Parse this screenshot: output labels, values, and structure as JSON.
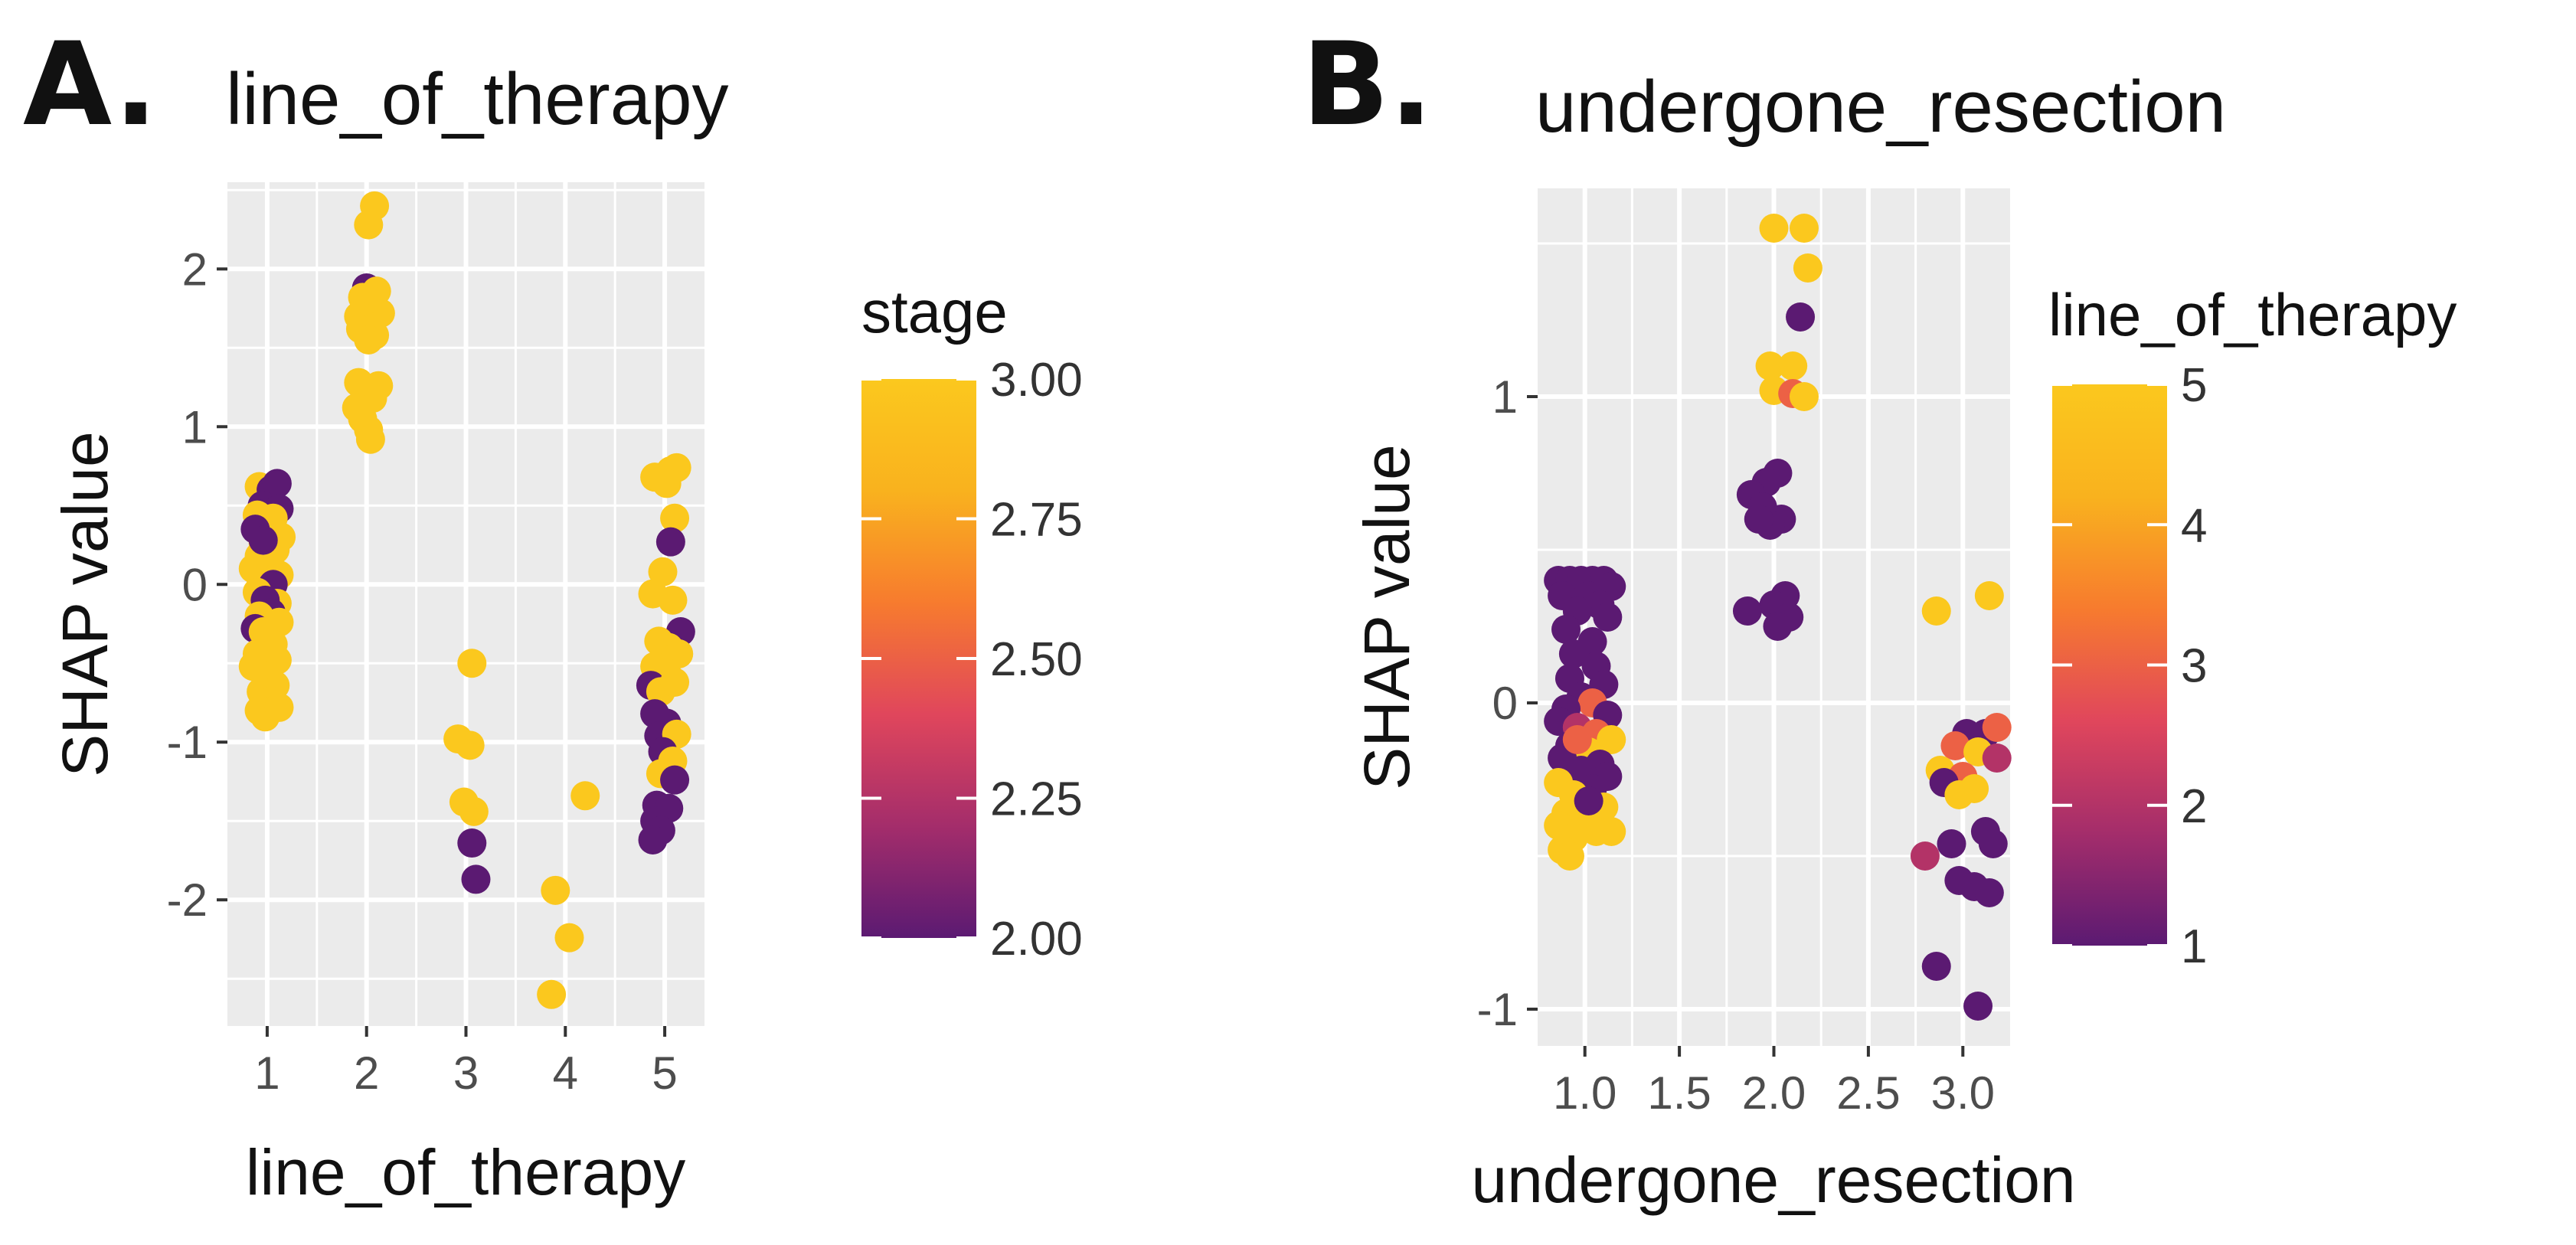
{
  "chart_data": [
    {
      "panel_label": "A.",
      "type": "scatter",
      "title": "line_of_therapy",
      "xlabel": "line_of_therapy",
      "ylabel": "SHAP value",
      "xlim": [
        0.6,
        5.4
      ],
      "ylim": [
        -2.8,
        2.55
      ],
      "x_ticks": [
        1,
        2,
        3,
        4,
        5
      ],
      "x_tick_labels": [
        "1",
        "2",
        "3",
        "4",
        "5"
      ],
      "x_minor": [],
      "y_ticks": [
        -2,
        -1,
        0,
        1,
        2
      ],
      "y_tick_labels": [
        "-2",
        "-1",
        "0",
        "1",
        "2"
      ],
      "grid": true,
      "color_var": "stage",
      "color_range": [
        2.0,
        3.0
      ],
      "legend_ticks": [
        2.0,
        2.25,
        2.5,
        2.75,
        3.0
      ],
      "legend_tick_labels": [
        "2.00",
        "2.25",
        "2.50",
        "2.75",
        "3.00"
      ],
      "palette": [
        "#5b1a72",
        "#a42d6b",
        "#e0465c",
        "#f77b2e",
        "#f9b21e",
        "#fbc81e"
      ],
      "points": [
        [
          0.92,
          0.62,
          3
        ],
        [
          0.98,
          0.55,
          3
        ],
        [
          1.04,
          0.6,
          2
        ],
        [
          1.1,
          0.64,
          2
        ],
        [
          0.95,
          0.5,
          2
        ],
        [
          1.12,
          0.48,
          2
        ],
        [
          0.9,
          0.44,
          3
        ],
        [
          1.06,
          0.42,
          3
        ],
        [
          0.94,
          0.35,
          3
        ],
        [
          1.0,
          0.38,
          3
        ],
        [
          1.14,
          0.3,
          3
        ],
        [
          0.88,
          0.35,
          2
        ],
        [
          0.96,
          0.26,
          3
        ],
        [
          1.08,
          0.22,
          3
        ],
        [
          0.92,
          0.18,
          3
        ],
        [
          1.02,
          0.12,
          3
        ],
        [
          0.86,
          0.1,
          3
        ],
        [
          1.12,
          0.06,
          3
        ],
        [
          0.94,
          0.02,
          3
        ],
        [
          1.06,
          0.0,
          2
        ],
        [
          0.9,
          -0.05,
          3
        ],
        [
          1.1,
          -0.12,
          3
        ],
        [
          0.98,
          -0.1,
          2
        ],
        [
          1.04,
          -0.18,
          2
        ],
        [
          0.92,
          -0.2,
          3
        ],
        [
          0.88,
          -0.28,
          2
        ],
        [
          1.12,
          -0.24,
          3
        ],
        [
          0.96,
          -0.3,
          3
        ],
        [
          1.06,
          -0.38,
          3
        ],
        [
          0.9,
          -0.44,
          3
        ],
        [
          1.1,
          -0.48,
          3
        ],
        [
          0.86,
          -0.52,
          3
        ],
        [
          1.0,
          -0.58,
          3
        ],
        [
          1.08,
          -0.64,
          3
        ],
        [
          0.94,
          -0.68,
          3
        ],
        [
          1.04,
          -0.74,
          3
        ],
        [
          0.92,
          -0.8,
          3
        ],
        [
          0.98,
          -0.84,
          3
        ],
        [
          1.12,
          -0.78,
          3
        ],
        [
          0.96,
          0.28,
          2
        ],
        [
          2.0,
          1.88,
          2
        ],
        [
          2.08,
          2.4,
          3
        ],
        [
          2.02,
          2.28,
          3
        ],
        [
          1.96,
          1.82,
          3
        ],
        [
          2.1,
          1.86,
          3
        ],
        [
          2.04,
          1.8,
          3
        ],
        [
          2.14,
          1.72,
          3
        ],
        [
          1.92,
          1.7,
          3
        ],
        [
          2.0,
          1.64,
          3
        ],
        [
          2.08,
          1.58,
          3
        ],
        [
          1.94,
          1.62,
          3
        ],
        [
          2.02,
          1.55,
          3
        ],
        [
          2.12,
          1.26,
          3
        ],
        [
          1.92,
          1.28,
          3
        ],
        [
          1.98,
          1.22,
          3
        ],
        [
          2.06,
          1.18,
          3
        ],
        [
          1.96,
          1.05,
          3
        ],
        [
          2.02,
          0.98,
          3
        ],
        [
          2.04,
          0.92,
          3
        ],
        [
          1.9,
          1.12,
          3
        ],
        [
          3.06,
          -0.5,
          3
        ],
        [
          2.92,
          -0.98,
          3
        ],
        [
          3.04,
          -1.02,
          3
        ],
        [
          2.98,
          -1.38,
          3
        ],
        [
          3.08,
          -1.44,
          3
        ],
        [
          3.06,
          -1.64,
          2
        ],
        [
          3.1,
          -1.87,
          2
        ],
        [
          4.2,
          -1.34,
          3
        ],
        [
          3.9,
          -1.94,
          3
        ],
        [
          4.04,
          -2.24,
          3
        ],
        [
          3.86,
          -2.6,
          3
        ],
        [
          4.9,
          0.68,
          3
        ],
        [
          5.06,
          0.72,
          3
        ],
        [
          5.12,
          0.74,
          3
        ],
        [
          5.02,
          0.64,
          3
        ],
        [
          5.1,
          0.42,
          3
        ],
        [
          5.06,
          0.27,
          2
        ],
        [
          4.98,
          0.08,
          3
        ],
        [
          5.08,
          -0.1,
          3
        ],
        [
          4.88,
          -0.06,
          3
        ],
        [
          5.16,
          -0.3,
          2
        ],
        [
          4.94,
          -0.36,
          3
        ],
        [
          5.04,
          -0.4,
          3
        ],
        [
          5.14,
          -0.44,
          3
        ],
        [
          4.9,
          -0.52,
          3
        ],
        [
          5.02,
          -0.56,
          3
        ],
        [
          4.86,
          -0.64,
          2
        ],
        [
          4.96,
          -0.68,
          3
        ],
        [
          5.1,
          -0.62,
          3
        ],
        [
          4.9,
          -0.82,
          2
        ],
        [
          5.02,
          -0.88,
          2
        ],
        [
          4.94,
          -0.96,
          2
        ],
        [
          5.12,
          -0.95,
          3
        ],
        [
          4.98,
          -1.06,
          2
        ],
        [
          5.08,
          -1.12,
          3
        ],
        [
          4.96,
          -1.2,
          3
        ],
        [
          5.1,
          -1.24,
          2
        ],
        [
          4.92,
          -1.4,
          2
        ],
        [
          5.04,
          -1.42,
          2
        ],
        [
          4.9,
          -1.5,
          2
        ],
        [
          4.96,
          -1.56,
          2
        ],
        [
          4.88,
          -1.62,
          2
        ]
      ]
    },
    {
      "panel_label": "B.",
      "type": "scatter",
      "title": "undergone_resection",
      "xlabel": "undergone_resection",
      "ylabel": "SHAP value",
      "xlim": [
        0.75,
        3.25
      ],
      "ylim": [
        -1.12,
        1.68
      ],
      "x_ticks": [
        1.0,
        1.5,
        2.0,
        2.5,
        3.0
      ],
      "x_tick_labels": [
        "1.0",
        "1.5",
        "2.0",
        "2.5",
        "3.0"
      ],
      "x_minor": [
        1.25,
        1.75,
        2.25,
        2.75
      ],
      "y_ticks": [
        -1,
        0,
        1
      ],
      "y_tick_labels": [
        "-1",
        "0",
        "1"
      ],
      "grid": true,
      "color_var": "line_of_therapy",
      "color_range": [
        1,
        5
      ],
      "legend_ticks": [
        1,
        2,
        3,
        4,
        5
      ],
      "legend_tick_labels": [
        "1",
        "2",
        "3",
        "4",
        "5"
      ],
      "palette": [
        "#5b1a72",
        "#a42d6b",
        "#e0465c",
        "#f77b2e",
        "#f9b21e",
        "#fbc81e"
      ],
      "points": [
        [
          0.86,
          0.4,
          1
        ],
        [
          0.92,
          0.4,
          1
        ],
        [
          0.98,
          0.4,
          1
        ],
        [
          1.04,
          0.4,
          1
        ],
        [
          1.1,
          0.4,
          1
        ],
        [
          1.14,
          0.38,
          1
        ],
        [
          0.88,
          0.35,
          1
        ],
        [
          1.02,
          0.35,
          1
        ],
        [
          1.08,
          0.32,
          1
        ],
        [
          0.96,
          0.3,
          1
        ],
        [
          1.12,
          0.28,
          1
        ],
        [
          0.9,
          0.24,
          1
        ],
        [
          1.04,
          0.2,
          1
        ],
        [
          0.94,
          0.16,
          1
        ],
        [
          1.06,
          0.12,
          1
        ],
        [
          0.92,
          0.08,
          1
        ],
        [
          1.1,
          0.06,
          1
        ],
        [
          0.98,
          0.02,
          1
        ],
        [
          1.04,
          0.0,
          3
        ],
        [
          0.9,
          -0.02,
          1
        ],
        [
          1.12,
          -0.04,
          1
        ],
        [
          0.86,
          -0.06,
          1
        ],
        [
          0.96,
          -0.08,
          2
        ],
        [
          1.06,
          -0.1,
          3
        ],
        [
          1.14,
          -0.12,
          5
        ],
        [
          0.92,
          -0.14,
          1
        ],
        [
          1.02,
          -0.16,
          5
        ],
        [
          0.88,
          -0.18,
          1
        ],
        [
          1.08,
          -0.2,
          1
        ],
        [
          0.98,
          -0.22,
          1
        ],
        [
          1.12,
          -0.24,
          1
        ],
        [
          0.86,
          -0.26,
          5
        ],
        [
          1.04,
          -0.28,
          1
        ],
        [
          0.94,
          -0.3,
          5
        ],
        [
          1.1,
          -0.34,
          5
        ],
        [
          0.9,
          -0.36,
          5
        ],
        [
          1.0,
          -0.38,
          5
        ],
        [
          0.86,
          -0.4,
          5
        ],
        [
          1.14,
          -0.42,
          5
        ],
        [
          0.94,
          -0.44,
          5
        ],
        [
          0.88,
          -0.48,
          5
        ],
        [
          1.06,
          -0.42,
          5
        ],
        [
          0.92,
          -0.5,
          5
        ],
        [
          1.02,
          -0.32,
          1
        ],
        [
          0.96,
          -0.12,
          3
        ],
        [
          2.0,
          1.55,
          5
        ],
        [
          2.16,
          1.55,
          5
        ],
        [
          2.18,
          1.42,
          5
        ],
        [
          2.14,
          1.26,
          1
        ],
        [
          1.98,
          1.1,
          5
        ],
        [
          2.1,
          1.1,
          5
        ],
        [
          2.0,
          1.02,
          5
        ],
        [
          2.1,
          1.01,
          3
        ],
        [
          2.16,
          1.0,
          5
        ],
        [
          2.02,
          0.75,
          1
        ],
        [
          1.96,
          0.72,
          1
        ],
        [
          1.88,
          0.68,
          1
        ],
        [
          1.94,
          0.64,
          1
        ],
        [
          2.04,
          0.6,
          1
        ],
        [
          1.98,
          0.58,
          1
        ],
        [
          1.92,
          0.6,
          1
        ],
        [
          2.06,
          0.35,
          1
        ],
        [
          2.0,
          0.32,
          1
        ],
        [
          1.86,
          0.3,
          1
        ],
        [
          2.08,
          0.28,
          1
        ],
        [
          2.02,
          0.25,
          1
        ],
        [
          2.86,
          0.3,
          5
        ],
        [
          3.14,
          0.35,
          5
        ],
        [
          3.02,
          -0.1,
          1
        ],
        [
          3.12,
          -0.1,
          1
        ],
        [
          3.18,
          -0.08,
          3
        ],
        [
          2.96,
          -0.14,
          3
        ],
        [
          3.08,
          -0.16,
          5
        ],
        [
          3.18,
          -0.18,
          2
        ],
        [
          2.88,
          -0.22,
          5
        ],
        [
          3.0,
          -0.24,
          3
        ],
        [
          2.9,
          -0.26,
          1
        ],
        [
          3.06,
          -0.28,
          5
        ],
        [
          2.98,
          -0.3,
          5
        ],
        [
          3.12,
          -0.42,
          1
        ],
        [
          2.94,
          -0.46,
          1
        ],
        [
          3.16,
          -0.46,
          1
        ],
        [
          2.8,
          -0.5,
          2
        ],
        [
          2.98,
          -0.58,
          1
        ],
        [
          3.06,
          -0.6,
          1
        ],
        [
          3.14,
          -0.62,
          1
        ],
        [
          2.86,
          -0.86,
          1
        ],
        [
          3.08,
          -0.99,
          1
        ]
      ]
    }
  ]
}
